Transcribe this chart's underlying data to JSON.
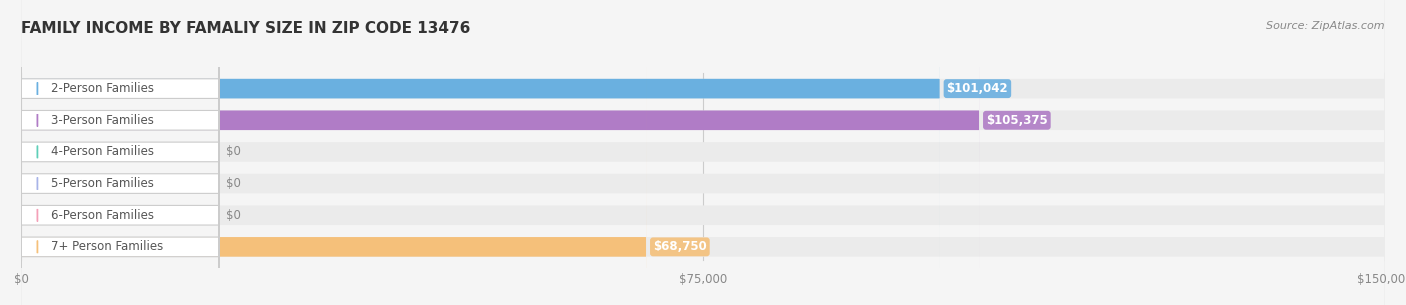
{
  "title": "FAMILY INCOME BY FAMALIY SIZE IN ZIP CODE 13476",
  "source": "Source: ZipAtlas.com",
  "categories": [
    "2-Person Families",
    "3-Person Families",
    "4-Person Families",
    "5-Person Families",
    "6-Person Families",
    "7+ Person Families"
  ],
  "values": [
    101042,
    105375,
    0,
    0,
    0,
    68750
  ],
  "bar_colors": [
    "#6ab0e0",
    "#b07cc6",
    "#5ecfb8",
    "#a8b4e8",
    "#f4a0b8",
    "#f5c07a"
  ],
  "label_colors": [
    "#6ab0e0",
    "#b07cc6",
    "#5ecfb8",
    "#a8b4e8",
    "#f4a0b8",
    "#f5c07a"
  ],
  "xlim": [
    0,
    150000
  ],
  "xticks": [
    0,
    75000,
    150000
  ],
  "xtick_labels": [
    "$0",
    "$75,000",
    "$150,000"
  ],
  "background_color": "#f5f5f5",
  "bar_bg_color": "#ebebeb",
  "title_fontsize": 11,
  "source_fontsize": 8,
  "label_fontsize": 8.5,
  "value_fontsize": 8.5
}
